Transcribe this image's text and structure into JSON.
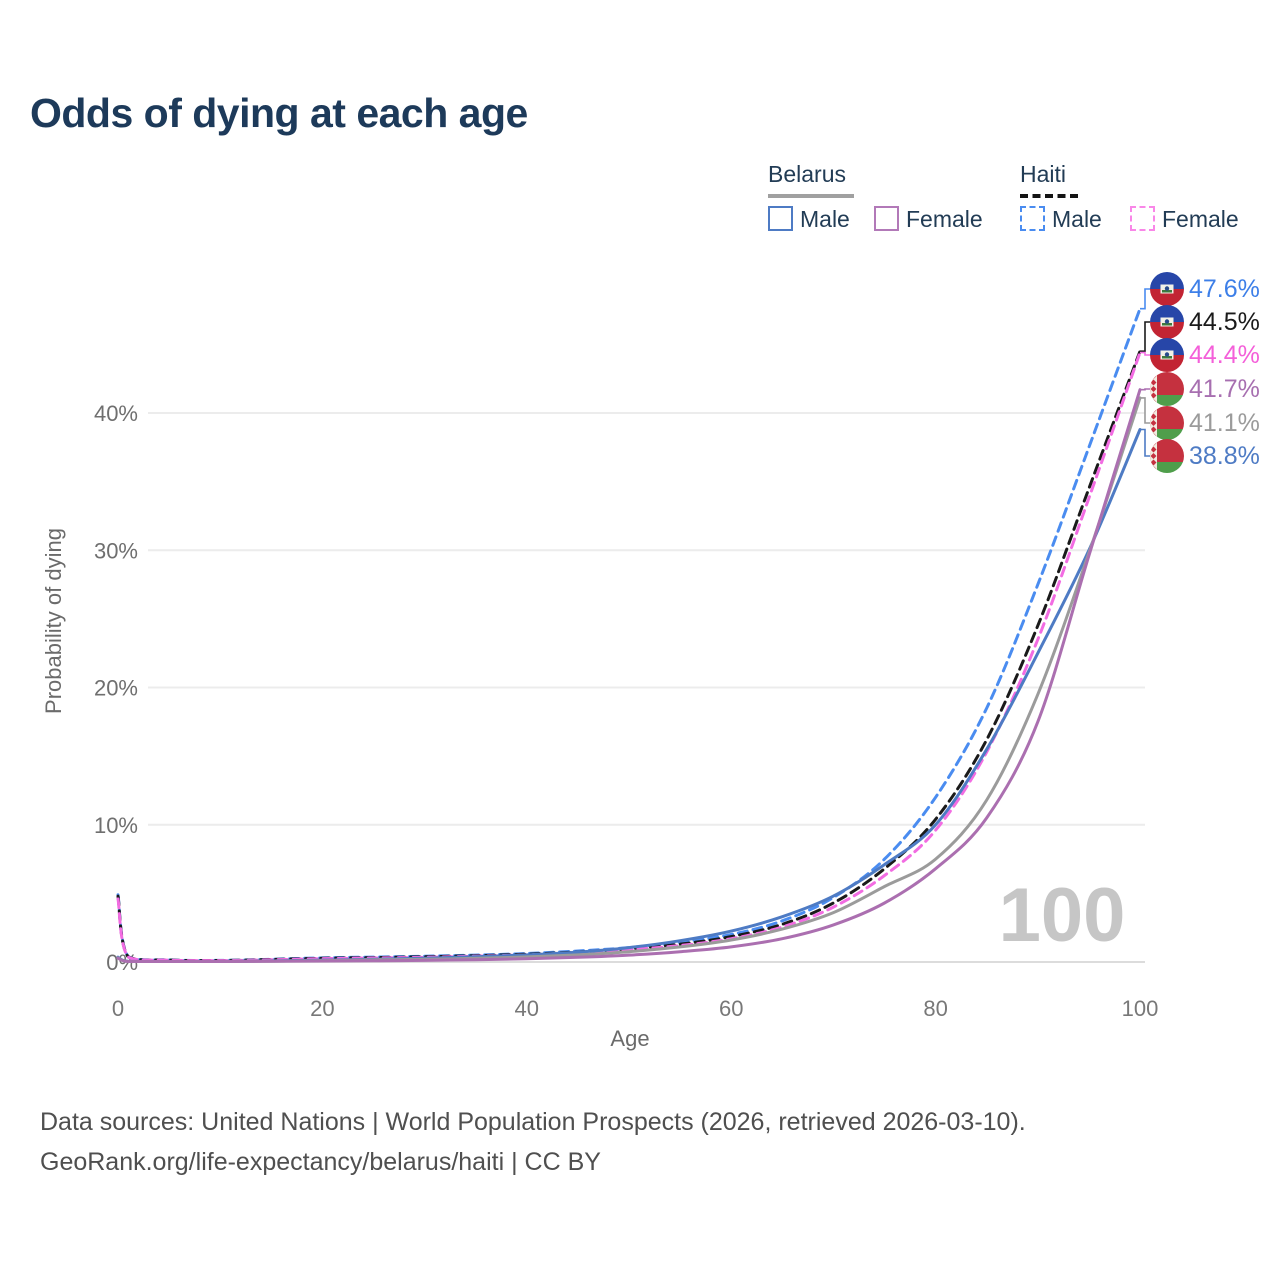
{
  "title": "Odds of dying at each age",
  "legend": {
    "groups": [
      {
        "country": "Belarus",
        "line_style": "solid",
        "underline_color": "#a0a0a0",
        "items": [
          {
            "label": "Male",
            "color": "#4e7bc4",
            "dash": false
          },
          {
            "label": "Female",
            "color": "#ab6fb0",
            "dash": false
          }
        ]
      },
      {
        "country": "Haiti",
        "line_style": "dashed",
        "underline_color": "#141414",
        "items": [
          {
            "label": "Male",
            "color": "#4a8cf0",
            "dash": true
          },
          {
            "label": "Female",
            "color": "#f26ce2",
            "dash": true
          }
        ]
      }
    ]
  },
  "axes": {
    "x_label": "Age",
    "y_label": "Probability of dying",
    "x_ticks": [
      0,
      20,
      40,
      60,
      80,
      100
    ],
    "y_ticks": [
      0,
      10,
      20,
      30,
      40
    ],
    "y_tick_suffix": "%"
  },
  "watermark": "100",
  "footer": {
    "line1": "Data sources: United Nations | World Population Prospects (2026, retrieved 2026-03-10).",
    "line2": "GeoRank.org/life-expectancy/belarus/haiti | CC BY"
  },
  "chart_data": {
    "type": "line",
    "xlabel": "Age",
    "ylabel": "Probability of dying",
    "xlim": [
      0,
      100
    ],
    "ylim": [
      0,
      50
    ],
    "grid": true,
    "x": [
      0,
      1,
      5,
      10,
      15,
      20,
      25,
      30,
      35,
      40,
      45,
      50,
      55,
      60,
      65,
      70,
      75,
      80,
      85,
      90,
      95,
      100
    ],
    "series": [
      {
        "name": "Haiti Male",
        "country": "Haiti",
        "sex": "Male",
        "flag": "ht",
        "color": "#4a8cf0",
        "dash": true,
        "end_label": "47.6%",
        "label_color": "#3d7fe8",
        "values": [
          4.9,
          0.4,
          0.15,
          0.12,
          0.2,
          0.3,
          0.36,
          0.42,
          0.5,
          0.62,
          0.8,
          1.05,
          1.45,
          2.0,
          3.0,
          4.7,
          7.5,
          12.0,
          18.5,
          27.5,
          37.5,
          47.6
        ]
      },
      {
        "name": "Haiti Total",
        "country": "Haiti",
        "sex": "Both",
        "flag": "ht",
        "color": "#1a1a1a",
        "dash": true,
        "end_label": "44.5%",
        "label_color": "#1a1a1a",
        "values": [
          4.8,
          0.38,
          0.14,
          0.11,
          0.18,
          0.27,
          0.32,
          0.38,
          0.46,
          0.57,
          0.73,
          0.97,
          1.3,
          1.85,
          2.75,
          4.3,
          6.8,
          10.4,
          16.2,
          24.5,
          34.5,
          44.5
        ]
      },
      {
        "name": "Haiti Female",
        "country": "Haiti",
        "sex": "Female",
        "flag": "ht",
        "color": "#f26ce2",
        "dash": true,
        "end_label": "44.4%",
        "label_color": "#f45fd9",
        "values": [
          4.6,
          0.36,
          0.13,
          0.1,
          0.16,
          0.24,
          0.29,
          0.34,
          0.42,
          0.52,
          0.67,
          0.9,
          1.2,
          1.7,
          2.55,
          4.0,
          6.3,
          9.6,
          15.3,
          23.5,
          33.8,
          44.4
        ]
      },
      {
        "name": "Belarus Male",
        "country": "Belarus",
        "sex": "Male",
        "flag": "by",
        "color": "#4e7bc4",
        "dash": false,
        "end_label": "38.8%",
        "label_color": "#4e7bc4",
        "values": [
          0.35,
          0.05,
          0.03,
          0.03,
          0.08,
          0.14,
          0.2,
          0.28,
          0.38,
          0.52,
          0.72,
          1.05,
          1.55,
          2.25,
          3.3,
          4.8,
          7.1,
          10.0,
          15.5,
          22.5,
          30.0,
          38.8
        ]
      },
      {
        "name": "Belarus Total",
        "country": "Belarus",
        "sex": "Both",
        "flag": "by",
        "color": "#9b9b9b",
        "dash": false,
        "end_label": "41.1%",
        "label_color": "#9b9b9b",
        "values": [
          0.3,
          0.04,
          0.03,
          0.03,
          0.06,
          0.1,
          0.15,
          0.2,
          0.27,
          0.37,
          0.52,
          0.75,
          1.1,
          1.6,
          2.4,
          3.6,
          5.5,
          7.5,
          11.8,
          19.5,
          29.8,
          41.1
        ]
      },
      {
        "name": "Belarus Female",
        "country": "Belarus",
        "sex": "Female",
        "flag": "by",
        "color": "#ab6fb0",
        "dash": false,
        "end_label": "41.7%",
        "label_color": "#a76fb0",
        "values": [
          0.28,
          0.04,
          0.02,
          0.02,
          0.05,
          0.07,
          0.09,
          0.12,
          0.17,
          0.24,
          0.34,
          0.5,
          0.75,
          1.1,
          1.7,
          2.7,
          4.3,
          6.8,
          10.5,
          17.5,
          29.6,
          41.7
        ]
      }
    ]
  }
}
